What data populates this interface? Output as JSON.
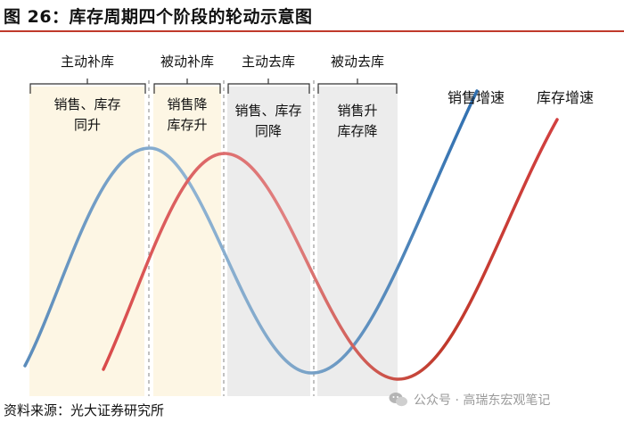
{
  "title": "图 26：库存周期四个阶段的轮动示意图",
  "source": "资料来源：光大证券研究所",
  "watermark": "公众号 · 高瑞东宏观笔记",
  "stages": [
    {
      "label": "主动补库",
      "line1": "销售、库存",
      "line2": "同升",
      "fill": "#fdf6e4"
    },
    {
      "label": "被动补库",
      "line1": "销售降",
      "line2": "库存升",
      "fill": "#fdf6e4"
    },
    {
      "label": "主动去库",
      "line1": "销售、库存",
      "line2": "同降",
      "fill": "#ececec"
    },
    {
      "label": "被动去库",
      "line1": "销售升",
      "line2": "库存降",
      "fill": "#ececec"
    }
  ],
  "curves": {
    "sales": {
      "label": "销售增速",
      "color": "#7ea6c9"
    },
    "inventory": {
      "label": "库存增速",
      "color": "#c94a4a"
    }
  }
}
